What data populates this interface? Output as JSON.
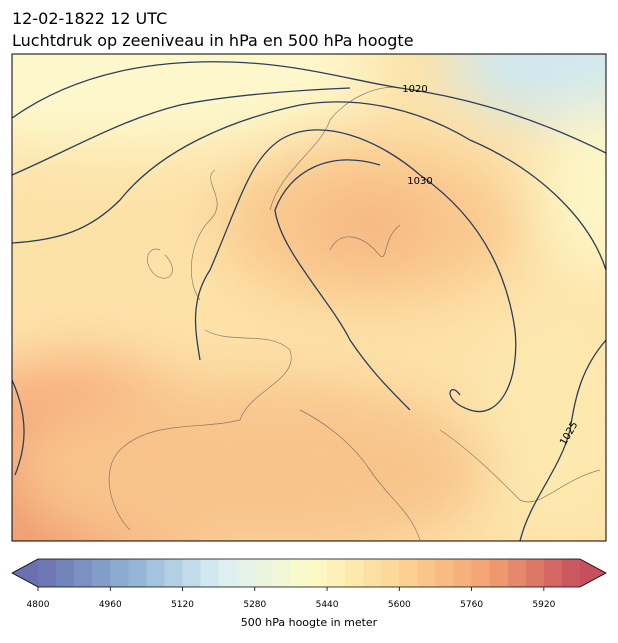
{
  "title": "12-02-1822 12 UTC",
  "subtitle": "Luchtdruk op zeeniveau in hPa en 500 hPa hoogte",
  "contour_labels": [
    "1020",
    "1030",
    "1025"
  ],
  "colorbar": {
    "label": "500 hPa hoogte in meter",
    "lim": [
      4800,
      6000
    ],
    "step": 40,
    "ticks": [
      4800,
      4960,
      5120,
      5280,
      5440,
      5600,
      5760,
      5920
    ],
    "colors": [
      "#6a6fb0",
      "#8db0d4",
      "#d9eef4",
      "#fdfbc8",
      "#fcd593",
      "#f4a070",
      "#c64f5e"
    ]
  }
}
